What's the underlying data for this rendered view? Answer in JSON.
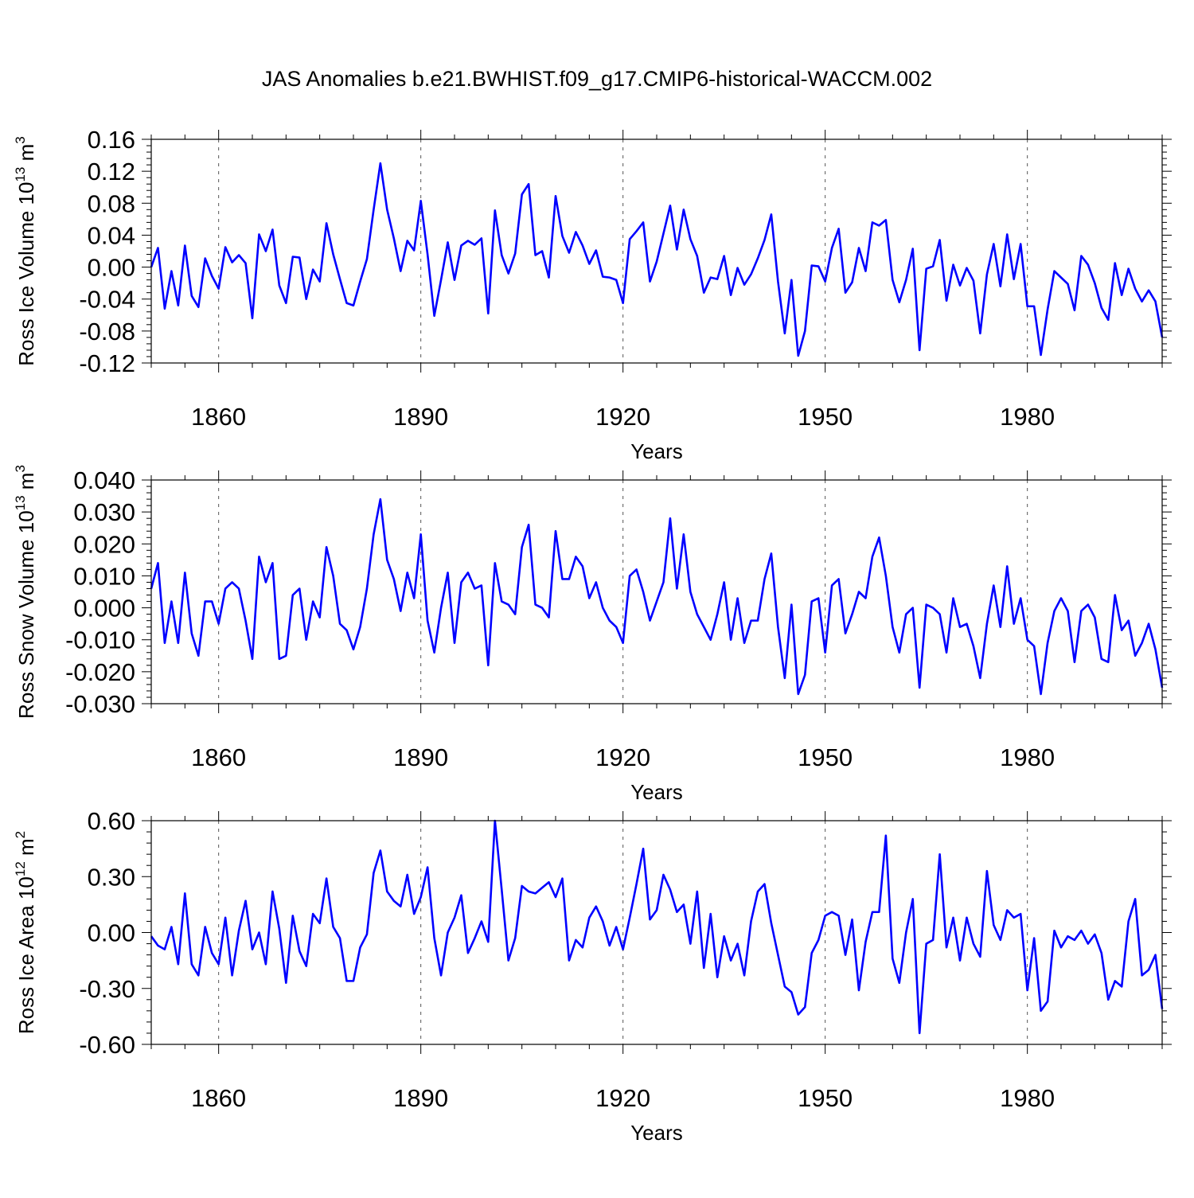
{
  "figure": {
    "title": "JAS Anomalies b.e21.BWHIST.f09_g17.CMIP6-historical-WACCM.002"
  },
  "chart_data": [
    {
      "type": "line",
      "title": "",
      "xlabel": "Years",
      "ylabel_main": "Ross Ice Volume 10",
      "ylabel_exp": "13",
      "ylabel_unit": " m",
      "ylabel_unit_exp": "3",
      "xlim": [
        1850,
        2000
      ],
      "ylim": [
        -0.12,
        0.16
      ],
      "yticks": [
        -0.12,
        -0.08,
        -0.04,
        0.0,
        0.04,
        0.08,
        0.12,
        0.16
      ],
      "ytick_labels": [
        "-0.12",
        "-0.08",
        "-0.04",
        "0.00",
        "0.04",
        "0.08",
        "0.12",
        "0.16"
      ],
      "xticks": [
        1860,
        1890,
        1920,
        1950,
        1980
      ],
      "xtick_labels": [
        "1860",
        "1890",
        "1920",
        "1950",
        "1980"
      ],
      "series": [
        {
          "name": "Ross Ice Volume",
          "color": "#0000ff",
          "x_start": 1850,
          "x_step": 1,
          "values": [
            0.0,
            0.024,
            -0.052,
            -0.005,
            -0.048,
            0.027,
            -0.036,
            -0.05,
            0.011,
            -0.011,
            -0.027,
            0.025,
            0.006,
            0.015,
            0.005,
            -0.064,
            0.041,
            0.02,
            0.047,
            -0.023,
            -0.045,
            0.013,
            0.012,
            -0.04,
            -0.003,
            -0.018,
            0.055,
            0.016,
            -0.015,
            -0.045,
            -0.048,
            -0.018,
            0.01,
            0.072,
            0.13,
            0.072,
            0.036,
            -0.005,
            0.033,
            0.021,
            0.083,
            0.016,
            -0.061,
            -0.016,
            0.031,
            -0.016,
            0.027,
            0.033,
            0.028,
            0.036,
            -0.058,
            0.071,
            0.015,
            -0.008,
            0.017,
            0.091,
            0.104,
            0.015,
            0.02,
            -0.013,
            0.089,
            0.039,
            0.018,
            0.044,
            0.027,
            0.004,
            0.021,
            -0.012,
            -0.013,
            -0.016,
            -0.045,
            0.035,
            0.045,
            0.056,
            -0.018,
            0.007,
            0.042,
            0.077,
            0.022,
            0.072,
            0.035,
            0.014,
            -0.032,
            -0.013,
            -0.015,
            0.014,
            -0.035,
            -0.001,
            -0.022,
            -0.009,
            0.011,
            0.034,
            0.066,
            -0.018,
            -0.083,
            -0.016,
            -0.111,
            -0.08,
            0.002,
            0.001,
            -0.018,
            0.024,
            0.048,
            -0.032,
            -0.019,
            0.024,
            -0.005,
            0.056,
            0.052,
            0.059,
            -0.016,
            -0.044,
            -0.016,
            0.023,
            -0.104,
            -0.002,
            0.001,
            0.034,
            -0.042,
            0.003,
            -0.023,
            -0.001,
            -0.017,
            -0.083,
            -0.009,
            0.029,
            -0.024,
            0.041,
            -0.015,
            0.029,
            -0.049,
            -0.049,
            -0.11,
            -0.053,
            -0.005,
            -0.013,
            -0.021,
            -0.054,
            0.014,
            0.003,
            -0.02,
            -0.051,
            -0.066,
            0.005,
            -0.035,
            -0.002,
            -0.027,
            -0.043,
            -0.029,
            -0.043,
            -0.088
          ]
        }
      ]
    },
    {
      "type": "line",
      "title": "",
      "xlabel": "Years",
      "ylabel_main": "Ross Snow Volume 10",
      "ylabel_exp": "13",
      "ylabel_unit": " m",
      "ylabel_unit_exp": "3",
      "xlim": [
        1850,
        2000
      ],
      "ylim": [
        -0.03,
        0.04
      ],
      "yticks": [
        -0.03,
        -0.02,
        -0.01,
        0.0,
        0.01,
        0.02,
        0.03,
        0.04
      ],
      "ytick_labels": [
        "-0.030",
        "-0.020",
        "-0.010",
        "0.000",
        "0.010",
        "0.020",
        "0.030",
        "0.040"
      ],
      "xticks": [
        1860,
        1890,
        1920,
        1950,
        1980
      ],
      "xtick_labels": [
        "1860",
        "1890",
        "1920",
        "1950",
        "1980"
      ],
      "series": [
        {
          "name": "Ross Snow Volume",
          "color": "#0000ff",
          "x_start": 1850,
          "x_step": 1,
          "values": [
            0.006,
            0.014,
            -0.011,
            0.002,
            -0.011,
            0.011,
            -0.008,
            -0.015,
            0.002,
            0.002,
            -0.005,
            0.006,
            0.008,
            0.006,
            -0.004,
            -0.016,
            0.016,
            0.008,
            0.014,
            -0.016,
            -0.015,
            0.004,
            0.006,
            -0.01,
            0.002,
            -0.003,
            0.019,
            0.01,
            -0.005,
            -0.007,
            -0.013,
            -0.006,
            0.006,
            0.023,
            0.034,
            0.015,
            0.009,
            -0.001,
            0.011,
            0.003,
            0.023,
            -0.004,
            -0.014,
            0.0,
            0.011,
            -0.011,
            0.008,
            0.011,
            0.006,
            0.007,
            -0.018,
            0.014,
            0.002,
            0.001,
            -0.002,
            0.019,
            0.026,
            0.001,
            0.0,
            -0.003,
            0.024,
            0.009,
            0.009,
            0.016,
            0.013,
            0.003,
            0.008,
            0.0,
            -0.004,
            -0.006,
            -0.011,
            0.01,
            0.012,
            0.005,
            -0.004,
            0.002,
            0.008,
            0.028,
            0.006,
            0.023,
            0.005,
            -0.002,
            -0.006,
            -0.01,
            -0.002,
            0.008,
            -0.01,
            0.003,
            -0.011,
            -0.004,
            -0.004,
            0.009,
            0.017,
            -0.006,
            -0.022,
            0.001,
            -0.027,
            -0.021,
            0.002,
            0.003,
            -0.014,
            0.007,
            0.009,
            -0.008,
            -0.002,
            0.005,
            0.003,
            0.016,
            0.022,
            0.01,
            -0.006,
            -0.014,
            -0.002,
            0.0,
            -0.025,
            0.001,
            0.0,
            -0.002,
            -0.014,
            0.003,
            -0.006,
            -0.005,
            -0.012,
            -0.022,
            -0.005,
            0.007,
            -0.006,
            0.013,
            -0.005,
            0.003,
            -0.01,
            -0.012,
            -0.027,
            -0.011,
            -0.001,
            0.003,
            -0.001,
            -0.017,
            -0.001,
            0.001,
            -0.003,
            -0.016,
            -0.017,
            0.004,
            -0.007,
            -0.004,
            -0.015,
            -0.011,
            -0.005,
            -0.013,
            -0.025
          ]
        }
      ]
    },
    {
      "type": "line",
      "title": "",
      "xlabel": "Years",
      "ylabel_main": "Ross Ice Area 10",
      "ylabel_exp": "12",
      "ylabel_unit": " m",
      "ylabel_unit_exp": "2",
      "xlim": [
        1850,
        2000
      ],
      "ylim": [
        -0.6,
        0.6
      ],
      "yticks": [
        -0.6,
        -0.3,
        0.0,
        0.3,
        0.6
      ],
      "ytick_labels": [
        "-0.60",
        "-0.30",
        "0.00",
        "0.30",
        "0.60"
      ],
      "xticks": [
        1860,
        1890,
        1920,
        1950,
        1980
      ],
      "xtick_labels": [
        "1860",
        "1890",
        "1920",
        "1950",
        "1980"
      ],
      "series": [
        {
          "name": "Ross Ice Area",
          "color": "#0000ff",
          "x_start": 1850,
          "x_step": 1,
          "values": [
            -0.02,
            -0.07,
            -0.09,
            0.03,
            -0.17,
            0.21,
            -0.17,
            -0.23,
            0.03,
            -0.11,
            -0.17,
            0.08,
            -0.23,
            0.01,
            0.17,
            -0.09,
            0.0,
            -0.17,
            0.22,
            0.02,
            -0.27,
            0.09,
            -0.1,
            -0.18,
            0.1,
            0.05,
            0.29,
            0.03,
            -0.03,
            -0.26,
            -0.26,
            -0.08,
            -0.01,
            0.32,
            0.44,
            0.22,
            0.17,
            0.14,
            0.31,
            0.1,
            0.19,
            0.35,
            -0.03,
            -0.23,
            0.0,
            0.08,
            0.2,
            -0.11,
            -0.03,
            0.06,
            -0.05,
            0.6,
            0.23,
            -0.15,
            -0.03,
            0.25,
            0.22,
            0.21,
            0.24,
            0.27,
            0.19,
            0.29,
            -0.15,
            -0.04,
            -0.08,
            0.08,
            0.14,
            0.06,
            -0.07,
            0.03,
            -0.09,
            0.08,
            0.26,
            0.45,
            0.07,
            0.12,
            0.31,
            0.23,
            0.11,
            0.15,
            -0.06,
            0.22,
            -0.19,
            0.1,
            -0.24,
            -0.02,
            -0.15,
            -0.06,
            -0.23,
            0.06,
            0.22,
            0.26,
            0.05,
            -0.12,
            -0.29,
            -0.32,
            -0.44,
            -0.4,
            -0.11,
            -0.04,
            0.09,
            0.11,
            0.09,
            -0.12,
            0.07,
            -0.31,
            -0.05,
            0.11,
            0.11,
            0.52,
            -0.14,
            -0.27,
            0.0,
            0.18,
            -0.54,
            -0.06,
            -0.04,
            0.42,
            -0.08,
            0.08,
            -0.15,
            0.08,
            -0.06,
            -0.13,
            0.33,
            0.04,
            -0.04,
            0.12,
            0.08,
            0.1,
            -0.31,
            -0.03,
            -0.42,
            -0.37,
            0.01,
            -0.08,
            -0.02,
            -0.04,
            0.01,
            -0.06,
            -0.01,
            -0.11,
            -0.36,
            -0.26,
            -0.29,
            0.06,
            0.18,
            -0.23,
            -0.2,
            -0.12,
            -0.41
          ]
        }
      ]
    }
  ]
}
